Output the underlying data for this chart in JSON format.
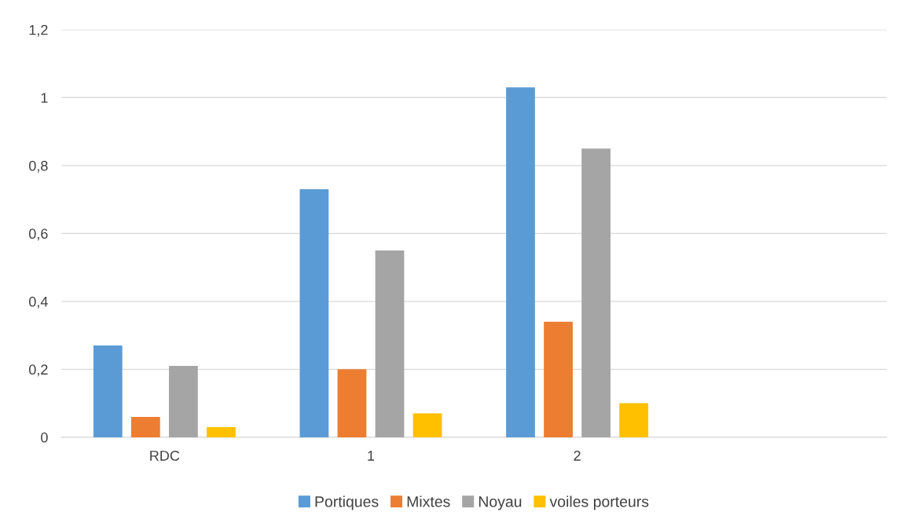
{
  "chart_data": {
    "type": "bar",
    "categories": [
      "RDC",
      "1",
      "2",
      null
    ],
    "series": [
      {
        "name": "Portiques",
        "color": "#5b9bd5",
        "values": [
          0.27,
          0.73,
          1.03,
          null
        ]
      },
      {
        "name": "Mixtes",
        "color": "#ed7d31",
        "values": [
          0.06,
          0.2,
          0.34,
          null
        ]
      },
      {
        "name": "Noyau",
        "color": "#a5a5a5",
        "values": [
          0.21,
          0.55,
          0.85,
          null
        ]
      },
      {
        "name": "voiles porteurs",
        "color": "#ffc000",
        "values": [
          0.03,
          0.07,
          0.1,
          null
        ]
      }
    ],
    "ylim": [
      0,
      1.2
    ],
    "yticks": [
      0,
      {
        "value": 0.2,
        "label": "0,2"
      },
      {
        "value": 0.4,
        "label": "0,4"
      },
      {
        "value": 0.6,
        "label": "0,6"
      },
      {
        "value": 0.8,
        "label": "0,8"
      },
      1,
      {
        "value": 1.2,
        "label": "1,2"
      }
    ],
    "grid": "y",
    "legend": "bottom"
  }
}
